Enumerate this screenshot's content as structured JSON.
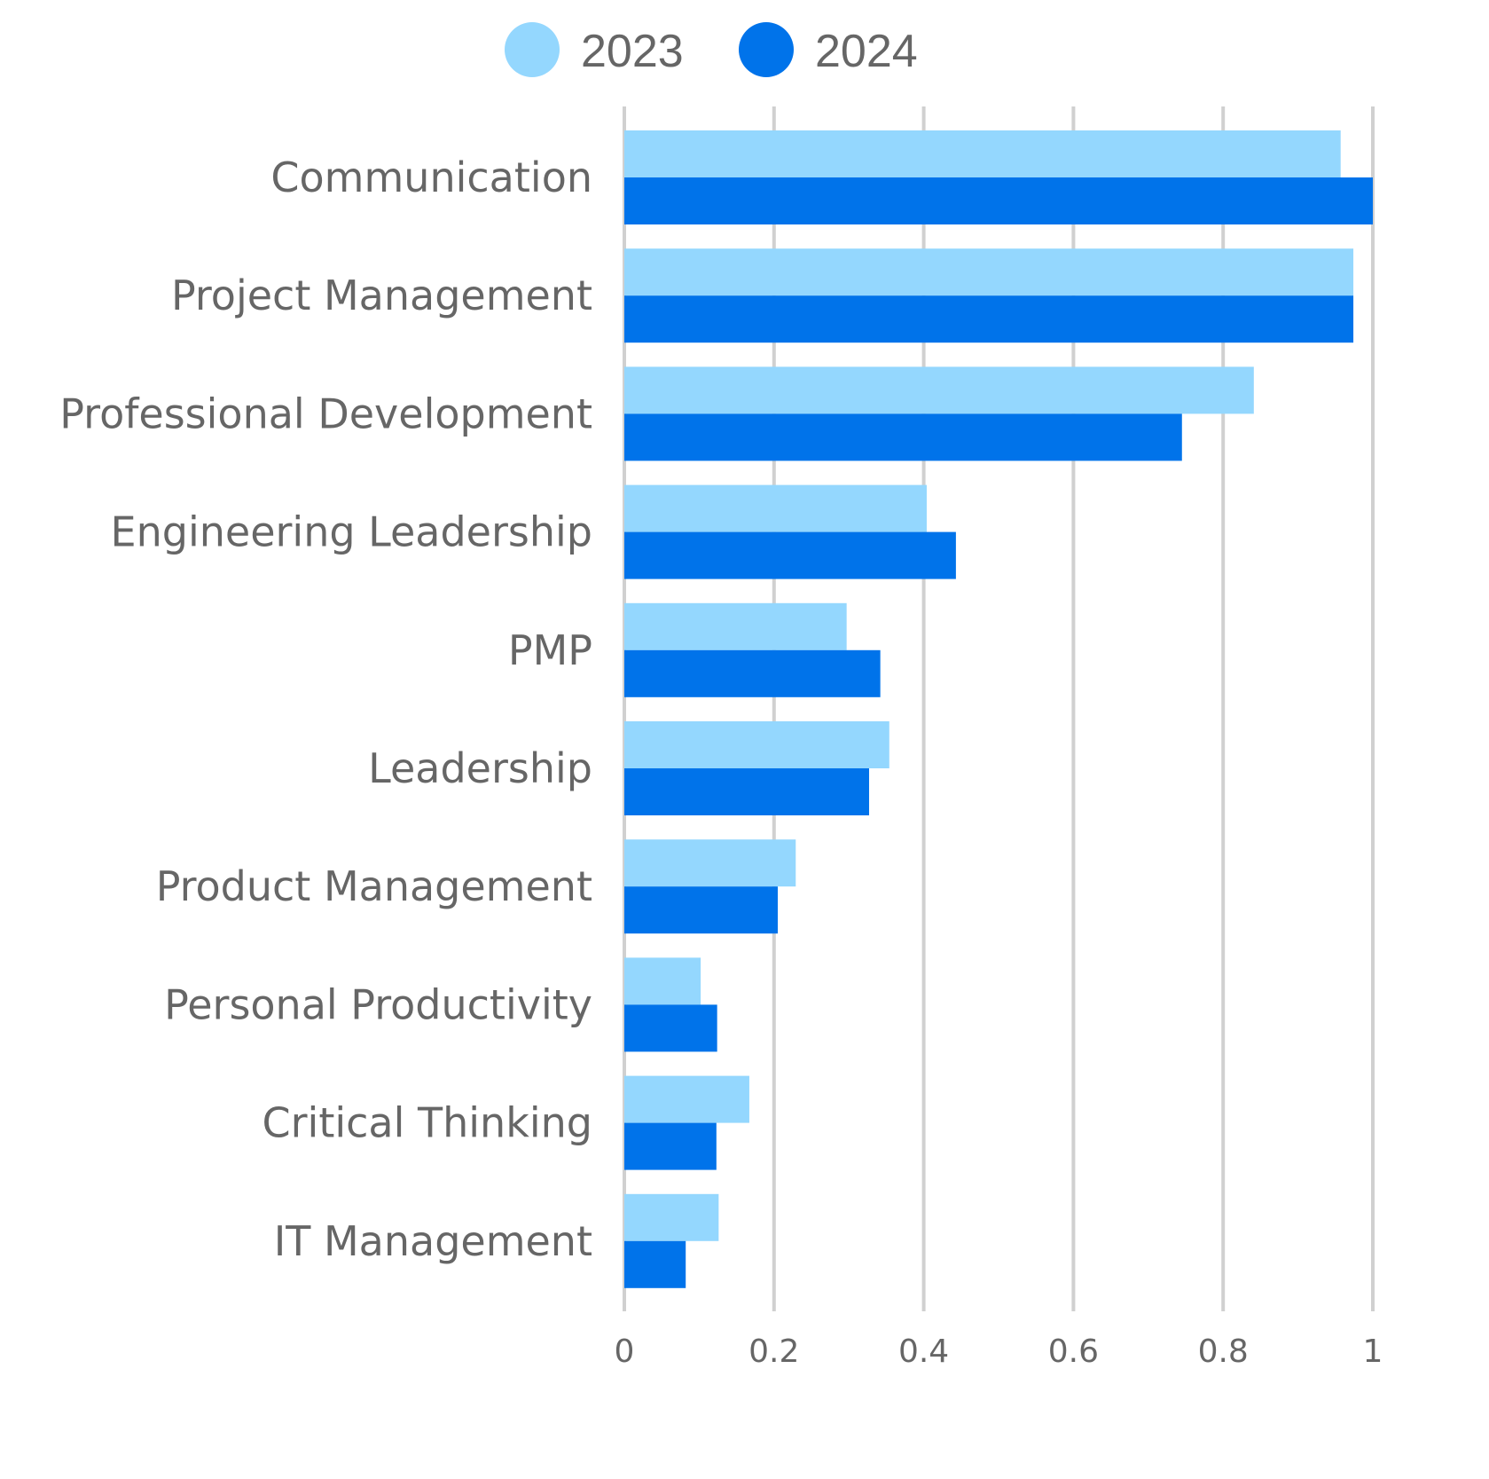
{
  "chart_data": {
    "type": "bar",
    "orientation": "horizontal",
    "title": "",
    "xlabel": "",
    "ylabel": "",
    "xlim": [
      0,
      1
    ],
    "grid": true,
    "legend_position": "top-center",
    "categories": [
      "Communication",
      "Project Management",
      "Professional Development",
      "Engineering Leadership",
      "PMP",
      "Leadership",
      "Product Management",
      "Personal Productivity",
      "Critical Thinking",
      "IT Management"
    ],
    "x_ticks": [
      "0",
      "0.2",
      "0.4",
      "0.6",
      "0.8",
      "1"
    ],
    "x_tick_values": [
      0,
      0.2,
      0.4,
      0.6,
      0.8,
      1
    ],
    "series": [
      {
        "name": "2023",
        "color": "#94d7fe",
        "values": [
          0.957,
          0.974,
          0.841,
          0.404,
          0.297,
          0.354,
          0.229,
          0.102,
          0.167,
          0.126
        ]
      },
      {
        "name": "2024",
        "color": "#0073ea",
        "values": [
          1.0,
          0.974,
          0.745,
          0.443,
          0.342,
          0.327,
          0.205,
          0.124,
          0.123,
          0.082
        ]
      }
    ]
  },
  "colors": {
    "text": "#666666",
    "grid": "#d0d0d0",
    "background": "#ffffff"
  }
}
